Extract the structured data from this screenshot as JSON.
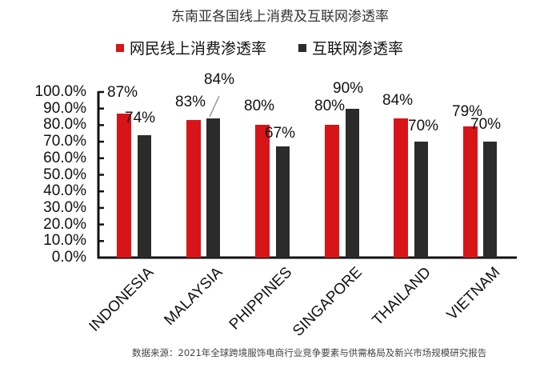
{
  "chart_data": {
    "type": "bar",
    "title": "东南亚各国线上消费及互联网渗透率",
    "categories": [
      "INDONESIA",
      "MALAYSIA",
      "PHIPPINES",
      "SINGAPORE",
      "THAILAND",
      "VIETNAM"
    ],
    "series": [
      {
        "name": "网民线上消费渗透率",
        "color": "#d71518",
        "values": [
          87,
          83,
          80,
          80,
          84,
          79
        ],
        "labels": [
          "87%",
          "83%",
          "80%",
          "80%",
          "84%",
          "79%"
        ]
      },
      {
        "name": "互联网渗透率",
        "color": "#2b2b2b",
        "values": [
          74,
          84,
          67,
          90,
          70,
          70
        ],
        "labels": [
          "74%",
          "84%",
          "67%",
          "90%",
          "70%",
          "70%"
        ]
      }
    ],
    "yticks": [
      "100.0%",
      "90.0%",
      "80.0%",
      "70.0%",
      "60.0%",
      "50.0%",
      "40.0%",
      "30.0%",
      "20.0%",
      "10.0%",
      "0.0%"
    ],
    "xlabel": "",
    "ylabel": "",
    "ylim": [
      0,
      100
    ],
    "grid": false,
    "legend_position": "top"
  },
  "source": "数据来源：2021年全球跨境服饰电商行业竞争要素与供需格局及新兴市场规模研究报告"
}
